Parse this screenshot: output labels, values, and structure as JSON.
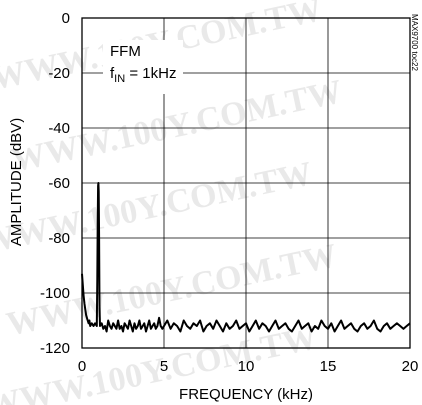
{
  "chart_data": {
    "type": "line",
    "title": "",
    "xlabel": "FREQUENCY (kHz)",
    "ylabel": "AMPLITUDE (dBV)",
    "xlim": [
      0,
      20
    ],
    "ylim": [
      -120,
      0
    ],
    "x_ticks": [
      0,
      5,
      10,
      15,
      20
    ],
    "y_ticks": [
      0,
      -20,
      -40,
      -60,
      -80,
      -100,
      -120
    ],
    "grid": true,
    "legend": "none",
    "annotations": {
      "mode": "FFM",
      "fin_prefix": "f",
      "fin_sub": "IN",
      "fin_suffix": " = 1kHz"
    },
    "figure_code": "MAX9700 toc22",
    "watermark": "WWW.100Y.COM.TW",
    "line_color": "#000000",
    "series": [
      {
        "x": [
          0.0,
          0.05,
          0.1,
          0.15,
          0.2,
          0.25,
          0.3,
          0.35,
          0.4,
          0.45,
          0.5,
          0.6,
          0.7,
          0.8,
          0.9,
          0.93,
          0.96,
          0.98,
          1.0,
          1.02,
          1.04,
          1.07,
          1.1,
          1.2,
          1.3,
          1.4,
          1.5,
          1.6,
          1.7,
          1.8,
          1.9,
          2.0,
          2.1,
          2.2,
          2.3,
          2.4,
          2.5,
          2.6,
          2.7,
          2.8,
          2.9,
          3.0,
          3.1,
          3.2,
          3.3,
          3.4,
          3.5,
          3.6,
          3.7,
          3.8,
          3.9,
          4.0,
          4.1,
          4.2,
          4.3,
          4.4,
          4.5,
          4.6,
          4.7,
          4.8,
          4.9,
          5.0,
          5.2,
          5.4,
          5.6,
          5.8,
          6.0,
          6.2,
          6.4,
          6.6,
          6.8,
          7.0,
          7.2,
          7.4,
          7.6,
          7.8,
          8.0,
          8.2,
          8.4,
          8.6,
          8.8,
          9.0,
          9.2,
          9.4,
          9.6,
          9.8,
          10.0,
          10.2,
          10.4,
          10.6,
          10.8,
          11.0,
          11.2,
          11.4,
          11.6,
          11.8,
          12.0,
          12.2,
          12.4,
          12.6,
          12.8,
          13.0,
          13.2,
          13.4,
          13.6,
          13.8,
          14.0,
          14.2,
          14.4,
          14.6,
          14.8,
          15.0,
          15.2,
          15.4,
          15.6,
          15.8,
          16.0,
          16.2,
          16.4,
          16.6,
          16.8,
          17.0,
          17.2,
          17.4,
          17.6,
          17.8,
          18.0,
          18.2,
          18.4,
          18.6,
          18.8,
          19.0,
          19.2,
          19.4,
          19.6,
          19.8,
          20.0
        ],
        "y": [
          -93,
          -97,
          -101,
          -104,
          -106,
          -108,
          -109,
          -110,
          -111,
          -110,
          -112,
          -111,
          -112,
          -111,
          -112,
          -95,
          -75,
          -61,
          -60,
          -63,
          -80,
          -105,
          -112,
          -111,
          -113,
          -112,
          -114,
          -110,
          -112,
          -113,
          -111,
          -112,
          -113,
          -110,
          -113,
          -112,
          -114,
          -111,
          -112,
          -113,
          -110,
          -112,
          -114,
          -111,
          -113,
          -112,
          -110,
          -113,
          -112,
          -111,
          -114,
          -112,
          -110,
          -113,
          -112,
          -111,
          -113,
          -112,
          -109,
          -112,
          -113,
          -112,
          -110,
          -113,
          -111,
          -112,
          -114,
          -110,
          -112,
          -113,
          -111,
          -112,
          -110,
          -114,
          -112,
          -111,
          -113,
          -110,
          -112,
          -114,
          -111,
          -113,
          -112,
          -110,
          -113,
          -112,
          -111,
          -114,
          -112,
          -110,
          -113,
          -111,
          -112,
          -114,
          -112,
          -110,
          -113,
          -112,
          -111,
          -113,
          -114,
          -112,
          -110,
          -113,
          -112,
          -111,
          -114,
          -112,
          -113,
          -110,
          -112,
          -113,
          -111,
          -114,
          -112,
          -110,
          -113,
          -112,
          -111,
          -113,
          -114,
          -112,
          -111,
          -113,
          -112,
          -110,
          -113,
          -114,
          -112,
          -111,
          -113,
          -112,
          -111,
          -112,
          -113,
          -112,
          -111
        ]
      }
    ]
  }
}
